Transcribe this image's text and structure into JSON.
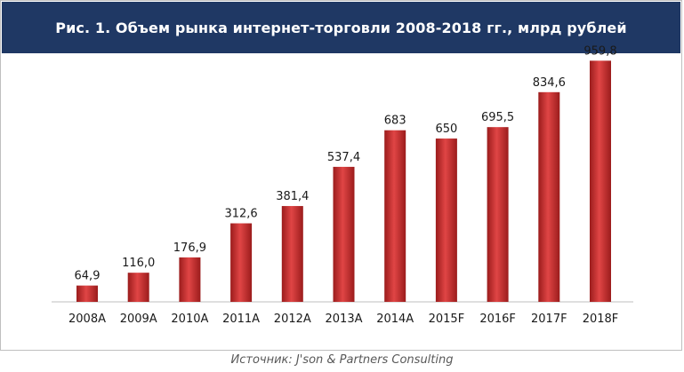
{
  "header": {
    "title": "Рис. 1. Объем рынка интернет-торговли 2008-2018 гг., млрд рублей"
  },
  "source": "Источник: J'son & Partners Consulting",
  "colors": {
    "header_bg": "#1f3864",
    "bar_dark": "#9b1c1c",
    "bar_mid": "#e04545",
    "bar_light": "#f07a7a"
  },
  "chart_data": {
    "type": "bar",
    "title": "Рис. 1. Объем рынка интернет-торговли 2008-2018 гг., млрд рублей",
    "categories": [
      "2008A",
      "2009A",
      "2010A",
      "2011A",
      "2012A",
      "2013A",
      "2014A",
      "2015F",
      "2016F",
      "2017F",
      "2018F"
    ],
    "values": [
      64.9,
      116.0,
      176.9,
      312.6,
      381.4,
      537.4,
      683,
      650,
      695.5,
      834.6,
      959.8
    ],
    "value_labels": [
      "64,9",
      "116,0",
      "176,9",
      "312,6",
      "381,4",
      "537,4",
      "683",
      "650",
      "695,5",
      "834,6",
      "959,8"
    ],
    "xlabel": "",
    "ylabel": "",
    "ylim": [
      0,
      1000
    ],
    "grid": false,
    "legend": "none"
  }
}
